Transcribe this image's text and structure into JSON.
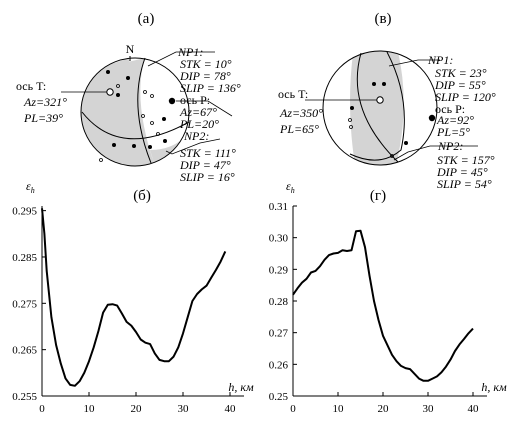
{
  "figure": {
    "beachball_a": {
      "panel_label": "(а)",
      "north_label": "N",
      "t_axis": {
        "name": "ось T:",
        "az": "Az=321°",
        "pl": "PL=39°"
      },
      "p_axis": {
        "name": "ось P:",
        "az": "Az=67°",
        "pl": "PL=20°"
      },
      "np1": {
        "name": "NP1:",
        "stk": "STK = 10°",
        "dip": "DIP = 78°",
        "slip": "SLIP = 136°"
      },
      "np2": {
        "name": "NP2:",
        "stk": "STK = 111°",
        "dip": "DIP = 47°",
        "slip": "SLIP = 16°"
      }
    },
    "beachball_b": {
      "panel_label": "(в)",
      "t_axis": {
        "name": "ось T:",
        "az": "Az=350°",
        "pl": "PL=65°"
      },
      "p_axis": {
        "name": "ось P:",
        "az": "Az=92°",
        "pl": "PL=5°"
      },
      "np1": {
        "name": "NP1:",
        "stk": "STK = 23°",
        "dip": "DIP = 55°",
        "slip": "SLIP = 120°"
      },
      "np2": {
        "name": "NP2:",
        "stk": "STK = 157°",
        "dip": "DIP = 45°",
        "slip": "SLIP = 54°"
      }
    }
  },
  "chart_data": [
    {
      "type": "line",
      "panel_label": "(б)",
      "ylabel": "εh",
      "xlabel": "h, км",
      "xlim": [
        0,
        40
      ],
      "ylim": [
        0.255,
        0.296
      ],
      "xticks": [
        0,
        10,
        20,
        30,
        40
      ],
      "yticks": [
        0.255,
        0.265,
        0.275,
        0.285,
        0.295
      ],
      "ytick_labels": [
        "0.255",
        "0.265",
        "0.275",
        "0.285",
        "0.295"
      ],
      "series": [
        {
          "color": "#000000",
          "x": [
            0,
            0.5,
            1,
            2,
            3,
            4,
            5,
            6,
            7,
            8,
            9,
            10,
            11,
            12,
            13,
            14,
            15,
            16,
            17,
            18,
            19,
            20,
            21,
            22,
            23,
            24,
            25,
            26,
            27,
            28,
            29,
            30,
            31,
            32,
            33,
            34,
            35,
            36,
            37,
            38,
            39
          ],
          "y": [
            0.2955,
            0.29,
            0.282,
            0.272,
            0.266,
            0.262,
            0.2588,
            0.2574,
            0.2572,
            0.2582,
            0.26,
            0.2625,
            0.2655,
            0.269,
            0.273,
            0.2747,
            0.2748,
            0.2745,
            0.2728,
            0.271,
            0.2702,
            0.2688,
            0.2672,
            0.2665,
            0.2662,
            0.2642,
            0.2628,
            0.2625,
            0.2625,
            0.2635,
            0.2655,
            0.2685,
            0.272,
            0.2755,
            0.277,
            0.278,
            0.2788,
            0.2805,
            0.2822,
            0.284,
            0.2862
          ]
        }
      ]
    },
    {
      "type": "line",
      "panel_label": "(г)",
      "ylabel": "εh",
      "xlabel": "h, км",
      "xlim": [
        0,
        40
      ],
      "ylim": [
        0.25,
        0.31
      ],
      "xticks": [
        0,
        10,
        20,
        30,
        40
      ],
      "yticks": [
        0.25,
        0.26,
        0.27,
        0.28,
        0.29,
        0.3,
        0.31
      ],
      "ytick_labels": [
        "0.25",
        "0.26",
        "0.27",
        "0.28",
        "0.29",
        "0.30",
        "0.31"
      ],
      "series": [
        {
          "color": "#000000",
          "x": [
            0,
            1,
            2,
            3,
            4,
            5,
            6,
            7,
            8,
            9,
            10,
            11,
            12,
            13,
            14,
            15,
            16,
            17,
            18,
            19,
            20,
            21,
            22,
            23,
            24,
            25,
            26,
            27,
            28,
            29,
            30,
            31,
            32,
            33,
            34,
            35,
            36,
            37,
            38,
            39,
            40
          ],
          "y": [
            0.282,
            0.284,
            0.2858,
            0.287,
            0.289,
            0.2895,
            0.291,
            0.293,
            0.2945,
            0.295,
            0.2952,
            0.296,
            0.2958,
            0.296,
            0.302,
            0.3022,
            0.297,
            0.288,
            0.28,
            0.274,
            0.269,
            0.266,
            0.263,
            0.261,
            0.2595,
            0.2588,
            0.2585,
            0.257,
            0.2555,
            0.2548,
            0.2548,
            0.2555,
            0.2562,
            0.2575,
            0.2593,
            0.2615,
            0.2642,
            0.2663,
            0.268,
            0.2698,
            0.2713
          ]
        }
      ]
    }
  ]
}
